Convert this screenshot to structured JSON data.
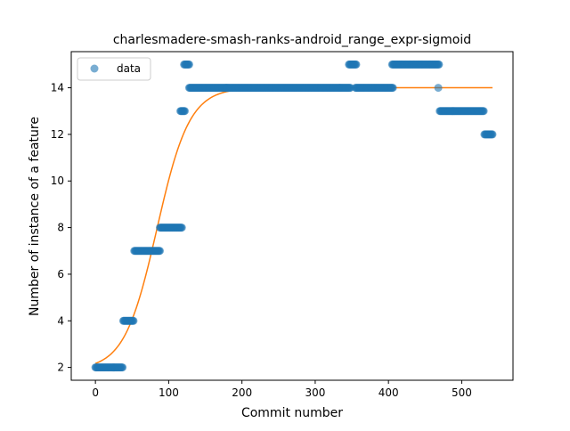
{
  "chart_data": {
    "type": "scatter",
    "title": "charlesmadere-smash-ranks-android_range_expr-sigmoid",
    "xlabel": "Commit number",
    "ylabel": "Number of instance of a feature",
    "xlim": [
      -33,
      570
    ],
    "ylim": [
      1.45,
      15.55
    ],
    "xticks": [
      0,
      100,
      200,
      300,
      400,
      500
    ],
    "yticks": [
      2,
      4,
      6,
      8,
      10,
      12,
      14
    ],
    "grid": false,
    "legend": {
      "placement": "top-left",
      "entries": [
        "data"
      ]
    },
    "colors": {
      "data": "#1f77b4",
      "fit": "#ff7f0e"
    },
    "series": [
      {
        "name": "data",
        "kind": "points",
        "runs": [
          {
            "x_start": 0,
            "x_end": 37,
            "y": 2
          },
          {
            "x_start": 38,
            "x_end": 52,
            "y": 4
          },
          {
            "x_start": 53,
            "x_end": 88,
            "y": 7
          },
          {
            "x_start": 88,
            "x_end": 118,
            "y": 8
          },
          {
            "x_start": 116,
            "x_end": 122,
            "y": 13
          },
          {
            "x_start": 121,
            "x_end": 128,
            "y": 15
          },
          {
            "x_start": 128,
            "x_end": 348,
            "y": 14
          },
          {
            "x_start": 346,
            "x_end": 356,
            "y": 15
          },
          {
            "x_start": 355,
            "x_end": 406,
            "y": 14
          },
          {
            "x_start": 405,
            "x_end": 469,
            "y": 15
          },
          {
            "x_start": 468,
            "x_end": 468,
            "y": 14
          },
          {
            "x_start": 470,
            "x_end": 530,
            "y": 13
          },
          {
            "x_start": 531,
            "x_end": 542,
            "y": 12
          }
        ]
      },
      {
        "kind": "sigmoid-fit",
        "x_range": [
          0,
          542
        ],
        "params": {
          "L": 12.1,
          "x0": 84,
          "k": 0.045,
          "base": 1.9
        }
      }
    ]
  }
}
